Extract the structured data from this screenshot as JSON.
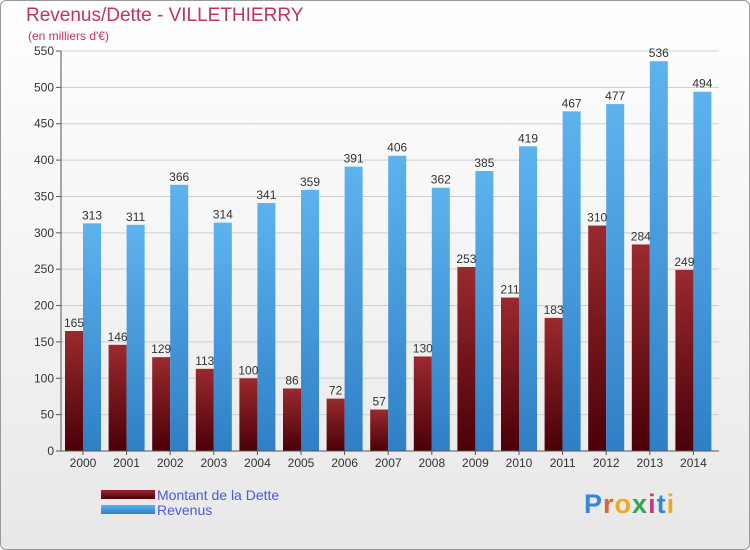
{
  "title": "Revenus/Dette - VILLETHIERRY",
  "subtitle": "(en milliers d'€)",
  "brand": "Proxiti",
  "colors": {
    "title": "#c0355a",
    "dette": "#7a1a1e",
    "revenus": "#4da6e8",
    "legend_text": "#4b5bd8",
    "grid": "#d0d0d0"
  },
  "chart_data": {
    "type": "bar",
    "categories": [
      "2000",
      "2001",
      "2002",
      "2003",
      "2004",
      "2005",
      "2006",
      "2007",
      "2008",
      "2009",
      "2010",
      "2011",
      "2012",
      "2013",
      "2014"
    ],
    "series": [
      {
        "name": "Montant de la Dette",
        "values": [
          165,
          146,
          129,
          113,
          100,
          86,
          72,
          57,
          130,
          253,
          211,
          183,
          310,
          284,
          249
        ]
      },
      {
        "name": "Revenus",
        "values": [
          313,
          311,
          366,
          314,
          341,
          359,
          391,
          406,
          362,
          385,
          419,
          467,
          477,
          536,
          494
        ]
      }
    ],
    "ylim": [
      0,
      550
    ],
    "yticks": [
      0,
      50,
      100,
      150,
      200,
      250,
      300,
      350,
      400,
      450,
      500,
      550
    ],
    "grid": true,
    "legend": "bottom-left"
  }
}
